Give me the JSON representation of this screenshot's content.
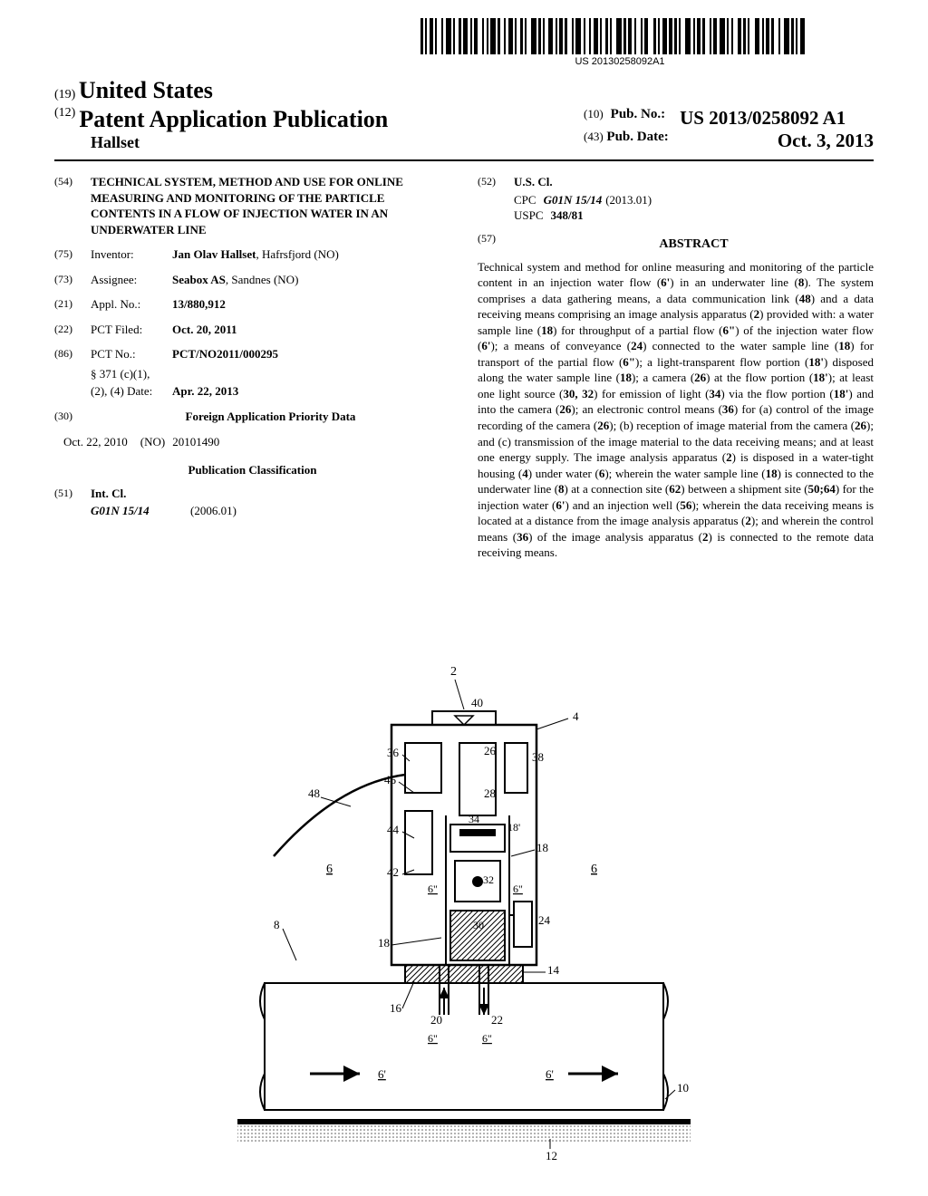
{
  "barcode": {
    "number": "US 20130258092A1"
  },
  "header": {
    "num19": "(19)",
    "country": "United States",
    "num12": "(12)",
    "pap": "Patent Application Publication",
    "author": "Hallset",
    "num10": "(10)",
    "pubno_label": "Pub. No.:",
    "pubno": "US 2013/0258092 A1",
    "num43": "(43)",
    "pubdate_label": "Pub. Date:",
    "pubdate": "Oct. 3, 2013"
  },
  "left": {
    "title_num": "(54)",
    "title": "TECHNICAL SYSTEM, METHOD AND USE FOR ONLINE MEASURING AND MONITORING OF THE PARTICLE CONTENTS IN A FLOW OF INJECTION WATER IN AN UNDERWATER LINE",
    "inventor_num": "(75)",
    "inventor_label": "Inventor:",
    "inventor_val": "Jan Olav Hallset",
    "inventor_loc": ", Hafrsfjord (NO)",
    "assignee_num": "(73)",
    "assignee_label": "Assignee:",
    "assignee_val": "Seabox AS",
    "assignee_loc": ", Sandnes (NO)",
    "appl_num": "(21)",
    "appl_label": "Appl. No.:",
    "appl_val": "13/880,912",
    "pct_filed_num": "(22)",
    "pct_filed_label": "PCT Filed:",
    "pct_filed_val": "Oct. 20, 2011",
    "pct_no_num": "(86)",
    "pct_no_label": "PCT No.:",
    "pct_no_val": "PCT/NO2011/000295",
    "s371_label": "§ 371 (c)(1),",
    "s371_date_label": "(2), (4) Date:",
    "s371_date_val": "Apr. 22, 2013",
    "foreign_num": "(30)",
    "foreign_title": "Foreign Application Priority Data",
    "foreign_date": "Oct. 22, 2010",
    "foreign_country": "(NO)",
    "foreign_app": "20101490",
    "pubclass_title": "Publication Classification",
    "intcl_num": "(51)",
    "intcl_label": "Int. Cl.",
    "intcl_code": "G01N 15/14",
    "intcl_year": "(2006.01)"
  },
  "right": {
    "uscl_num": "(52)",
    "uscl_label": "U.S. Cl.",
    "cpc_label": "CPC",
    "cpc_val": "G01N 15/14",
    "cpc_year": "(2013.01)",
    "uspc_label": "USPC",
    "uspc_val": "348/81",
    "abstract_num": "(57)",
    "abstract_title": "ABSTRACT",
    "abstract": "Technical system and method for online measuring and monitoring of the particle content in an injection water flow (6') in an underwater line (8). The system comprises a data gathering means, a data communication link (48) and a data receiving means comprising an image analysis apparatus (2) provided with: a water sample line (18) for throughput of a partial flow (6\") of the injection water flow (6'); a means of conveyance (24) connected to the water sample line (18) for transport of the partial flow (6\"); a light-transparent flow portion (18') disposed along the water sample line (18); a camera (26) at the flow portion (18'); at least one light source (30, 32) for emission of light (34) via the flow portion (18') and into the camera (26); an electronic control means (36) for (a) control of the image recording of the camera (26); (b) reception of image material from the camera (26); and (c) transmission of the image material to the data receiving means; and at least one energy supply. The image analysis apparatus (2) is disposed in a water-tight housing (4) under water (6); wherein the water sample line (18) is connected to the underwater line (8) at a connection site (62) between a shipment site (50;64) for the injection water (6') and an injection well (56); wherein the data receiving means is located at a distance from the image analysis apparatus (2); and wherein the control means (36) of the image analysis apparatus (2) is connected to the remote data receiving means."
  },
  "diagram": {
    "labels": [
      "2",
      "4",
      "6",
      "6'",
      "6\"",
      "8",
      "10",
      "12",
      "14",
      "16",
      "18",
      "18'",
      "20",
      "22",
      "24",
      "26",
      "28",
      "30",
      "32",
      "34",
      "36",
      "38",
      "40",
      "42",
      "44",
      "46",
      "48"
    ]
  }
}
